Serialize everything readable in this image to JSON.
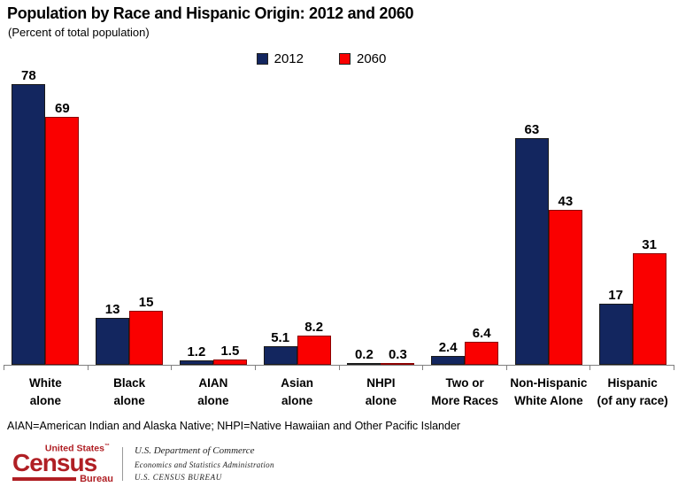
{
  "title": "Population by Race and Hispanic Origin: 2012 and 2060",
  "subtitle": "(Percent of total population)",
  "chart_data": {
    "type": "bar",
    "title": "Population by Race and Hispanic Origin: 2012 and 2060",
    "subtitle": "(Percent of total population)",
    "categories": [
      "White\nalone",
      "Black\nalone",
      "AIAN\nalone",
      "Asian\nalone",
      "NHPI\nalone",
      "Two or\nMore Races",
      "Non-Hispanic\nWhite Alone",
      "Hispanic\n(of any race)"
    ],
    "series": [
      {
        "name": "2012",
        "color": "#13265f",
        "border_color": "#1a1a1a",
        "values": [
          78,
          13,
          1.2,
          5.1,
          0.2,
          2.4,
          63,
          17
        ],
        "labels": [
          "78",
          "13",
          "1.2",
          "5.1",
          "0.2",
          "2.4",
          "63",
          "17"
        ]
      },
      {
        "name": "2060",
        "color": "#fa0000",
        "border_color": "#8b0000",
        "values": [
          69,
          15,
          1.5,
          8.2,
          0.3,
          6.4,
          43,
          31
        ],
        "labels": [
          "69",
          "15",
          "1.5",
          "8.2",
          "0.3",
          "6.4",
          "43",
          "31"
        ]
      }
    ],
    "xlabel": "",
    "ylabel": "",
    "ylim": [
      0,
      80
    ],
    "grid": false,
    "legend_position": "top",
    "axis_color": "#808080",
    "value_labels_shown": true
  },
  "footnote": "AIAN=American Indian and Alaska Native; NHPI=Native Hawaiian and Other Pacific Islander",
  "footer": {
    "logo": {
      "top": "United States",
      "tm": "™",
      "main": "Census",
      "bottom": "Bureau",
      "color": "#b01f24"
    },
    "lines": [
      "U.S. Department of Commerce",
      "Economics and Statistics Administration",
      "U.S. CENSUS BUREAU"
    ]
  }
}
